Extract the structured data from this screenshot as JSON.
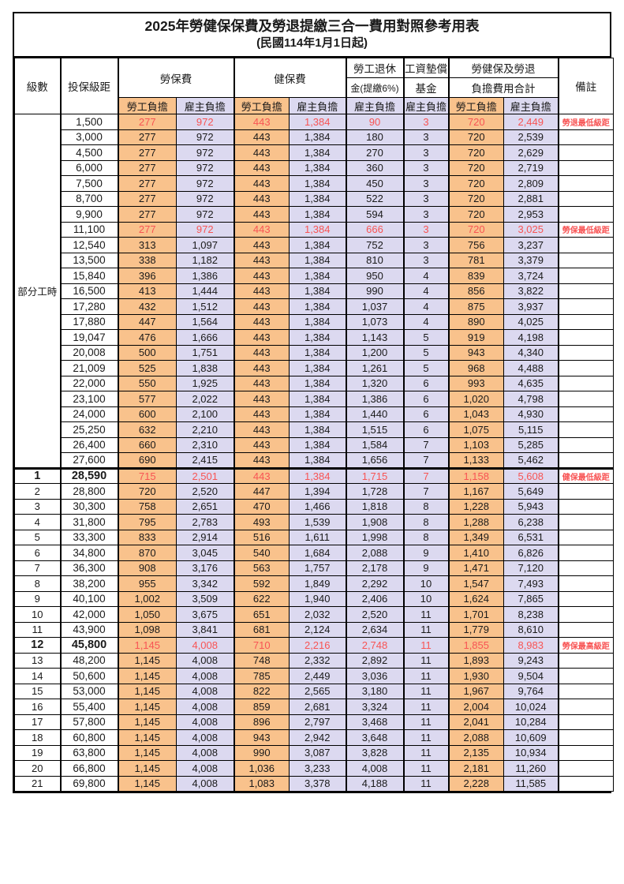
{
  "title": "2025年勞健保保費及勞退提繳三合一費用對照參考用表",
  "subtitle": "(民國114年1月1日起)",
  "colors": {
    "employee_column_bg": "#F9C28C",
    "employer_column_bg": "#DCD9F0",
    "highlight_text": "#F85454",
    "grid_line": "#000000"
  },
  "header": {
    "level": "級數",
    "bracket": "投保級距",
    "labor_ins": "勞保費",
    "health_ins": "健保費",
    "pension_l1": "勞工退休",
    "pension_l2": "金(提繳6%)",
    "fund_l1": "工資墊償",
    "fund_l2": "基金",
    "total_l1": "勞健保及勞退",
    "total_l2": "負擔費用合計",
    "remark": "備註",
    "employee": "勞工負擔",
    "employer": "雇主負擔"
  },
  "part_time_label": "部分工時",
  "part_time_span": 23,
  "rows": [
    {
      "level": "",
      "bracket": "1,500",
      "labor_emp": "277",
      "labor_er": "972",
      "health_emp": "443",
      "health_er": "1,384",
      "pension": "90",
      "fund": "3",
      "total_emp": "720",
      "total_er": "2,449",
      "remark": "勞退最低級距",
      "red": true,
      "bold": false,
      "sec": false
    },
    {
      "level": "",
      "bracket": "3,000",
      "labor_emp": "277",
      "labor_er": "972",
      "health_emp": "443",
      "health_er": "1,384",
      "pension": "180",
      "fund": "3",
      "total_emp": "720",
      "total_er": "2,539",
      "remark": "",
      "red": false,
      "bold": false,
      "sec": false
    },
    {
      "level": "",
      "bracket": "4,500",
      "labor_emp": "277",
      "labor_er": "972",
      "health_emp": "443",
      "health_er": "1,384",
      "pension": "270",
      "fund": "3",
      "total_emp": "720",
      "total_er": "2,629",
      "remark": "",
      "red": false,
      "bold": false,
      "sec": false
    },
    {
      "level": "",
      "bracket": "6,000",
      "labor_emp": "277",
      "labor_er": "972",
      "health_emp": "443",
      "health_er": "1,384",
      "pension": "360",
      "fund": "3",
      "total_emp": "720",
      "total_er": "2,719",
      "remark": "",
      "red": false,
      "bold": false,
      "sec": false
    },
    {
      "level": "",
      "bracket": "7,500",
      "labor_emp": "277",
      "labor_er": "972",
      "health_emp": "443",
      "health_er": "1,384",
      "pension": "450",
      "fund": "3",
      "total_emp": "720",
      "total_er": "2,809",
      "remark": "",
      "red": false,
      "bold": false,
      "sec": false
    },
    {
      "level": "",
      "bracket": "8,700",
      "labor_emp": "277",
      "labor_er": "972",
      "health_emp": "443",
      "health_er": "1,384",
      "pension": "522",
      "fund": "3",
      "total_emp": "720",
      "total_er": "2,881",
      "remark": "",
      "red": false,
      "bold": false,
      "sec": false
    },
    {
      "level": "",
      "bracket": "9,900",
      "labor_emp": "277",
      "labor_er": "972",
      "health_emp": "443",
      "health_er": "1,384",
      "pension": "594",
      "fund": "3",
      "total_emp": "720",
      "total_er": "2,953",
      "remark": "",
      "red": false,
      "bold": false,
      "sec": false
    },
    {
      "level": "",
      "bracket": "11,100",
      "labor_emp": "277",
      "labor_er": "972",
      "health_emp": "443",
      "health_er": "1,384",
      "pension": "666",
      "fund": "3",
      "total_emp": "720",
      "total_er": "3,025",
      "remark": "勞保最低級距",
      "red": true,
      "bold": false,
      "sec": false
    },
    {
      "level": "",
      "bracket": "12,540",
      "labor_emp": "313",
      "labor_er": "1,097",
      "health_emp": "443",
      "health_er": "1,384",
      "pension": "752",
      "fund": "3",
      "total_emp": "756",
      "total_er": "3,237",
      "remark": "",
      "red": false,
      "bold": false,
      "sec": false
    },
    {
      "level": "",
      "bracket": "13,500",
      "labor_emp": "338",
      "labor_er": "1,182",
      "health_emp": "443",
      "health_er": "1,384",
      "pension": "810",
      "fund": "3",
      "total_emp": "781",
      "total_er": "3,379",
      "remark": "",
      "red": false,
      "bold": false,
      "sec": false
    },
    {
      "level": "",
      "bracket": "15,840",
      "labor_emp": "396",
      "labor_er": "1,386",
      "health_emp": "443",
      "health_er": "1,384",
      "pension": "950",
      "fund": "4",
      "total_emp": "839",
      "total_er": "3,724",
      "remark": "",
      "red": false,
      "bold": false,
      "sec": false
    },
    {
      "level": "",
      "bracket": "16,500",
      "labor_emp": "413",
      "labor_er": "1,444",
      "health_emp": "443",
      "health_er": "1,384",
      "pension": "990",
      "fund": "4",
      "total_emp": "856",
      "total_er": "3,822",
      "remark": "",
      "red": false,
      "bold": false,
      "sec": false
    },
    {
      "level": "",
      "bracket": "17,280",
      "labor_emp": "432",
      "labor_er": "1,512",
      "health_emp": "443",
      "health_er": "1,384",
      "pension": "1,037",
      "fund": "4",
      "total_emp": "875",
      "total_er": "3,937",
      "remark": "",
      "red": false,
      "bold": false,
      "sec": false
    },
    {
      "level": "",
      "bracket": "17,880",
      "labor_emp": "447",
      "labor_er": "1,564",
      "health_emp": "443",
      "health_er": "1,384",
      "pension": "1,073",
      "fund": "4",
      "total_emp": "890",
      "total_er": "4,025",
      "remark": "",
      "red": false,
      "bold": false,
      "sec": false
    },
    {
      "level": "",
      "bracket": "19,047",
      "labor_emp": "476",
      "labor_er": "1,666",
      "health_emp": "443",
      "health_er": "1,384",
      "pension": "1,143",
      "fund": "5",
      "total_emp": "919",
      "total_er": "4,198",
      "remark": "",
      "red": false,
      "bold": false,
      "sec": false
    },
    {
      "level": "",
      "bracket": "20,008",
      "labor_emp": "500",
      "labor_er": "1,751",
      "health_emp": "443",
      "health_er": "1,384",
      "pension": "1,200",
      "fund": "5",
      "total_emp": "943",
      "total_er": "4,340",
      "remark": "",
      "red": false,
      "bold": false,
      "sec": false
    },
    {
      "level": "",
      "bracket": "21,009",
      "labor_emp": "525",
      "labor_er": "1,838",
      "health_emp": "443",
      "health_er": "1,384",
      "pension": "1,261",
      "fund": "5",
      "total_emp": "968",
      "total_er": "4,488",
      "remark": "",
      "red": false,
      "bold": false,
      "sec": false
    },
    {
      "level": "",
      "bracket": "22,000",
      "labor_emp": "550",
      "labor_er": "1,925",
      "health_emp": "443",
      "health_er": "1,384",
      "pension": "1,320",
      "fund": "6",
      "total_emp": "993",
      "total_er": "4,635",
      "remark": "",
      "red": false,
      "bold": false,
      "sec": false
    },
    {
      "level": "",
      "bracket": "23,100",
      "labor_emp": "577",
      "labor_er": "2,022",
      "health_emp": "443",
      "health_er": "1,384",
      "pension": "1,386",
      "fund": "6",
      "total_emp": "1,020",
      "total_er": "4,798",
      "remark": "",
      "red": false,
      "bold": false,
      "sec": false
    },
    {
      "level": "",
      "bracket": "24,000",
      "labor_emp": "600",
      "labor_er": "2,100",
      "health_emp": "443",
      "health_er": "1,384",
      "pension": "1,440",
      "fund": "6",
      "total_emp": "1,043",
      "total_er": "4,930",
      "remark": "",
      "red": false,
      "bold": false,
      "sec": false
    },
    {
      "level": "",
      "bracket": "25,250",
      "labor_emp": "632",
      "labor_er": "2,210",
      "health_emp": "443",
      "health_er": "1,384",
      "pension": "1,515",
      "fund": "6",
      "total_emp": "1,075",
      "total_er": "5,115",
      "remark": "",
      "red": false,
      "bold": false,
      "sec": false
    },
    {
      "level": "",
      "bracket": "26,400",
      "labor_emp": "660",
      "labor_er": "2,310",
      "health_emp": "443",
      "health_er": "1,384",
      "pension": "1,584",
      "fund": "7",
      "total_emp": "1,103",
      "total_er": "5,285",
      "remark": "",
      "red": false,
      "bold": false,
      "sec": false
    },
    {
      "level": "",
      "bracket": "27,600",
      "labor_emp": "690",
      "labor_er": "2,415",
      "health_emp": "443",
      "health_er": "1,384",
      "pension": "1,656",
      "fund": "7",
      "total_emp": "1,133",
      "total_er": "5,462",
      "remark": "",
      "red": false,
      "bold": false,
      "sec": false
    },
    {
      "level": "1",
      "bracket": "28,590",
      "labor_emp": "715",
      "labor_er": "2,501",
      "health_emp": "443",
      "health_er": "1,384",
      "pension": "1,715",
      "fund": "7",
      "total_emp": "1,158",
      "total_er": "5,608",
      "remark": "健保最低級距",
      "red": true,
      "bold": true,
      "sec": true
    },
    {
      "level": "2",
      "bracket": "28,800",
      "labor_emp": "720",
      "labor_er": "2,520",
      "health_emp": "447",
      "health_er": "1,394",
      "pension": "1,728",
      "fund": "7",
      "total_emp": "1,167",
      "total_er": "5,649",
      "remark": "",
      "red": false,
      "bold": false,
      "sec": false
    },
    {
      "level": "3",
      "bracket": "30,300",
      "labor_emp": "758",
      "labor_er": "2,651",
      "health_emp": "470",
      "health_er": "1,466",
      "pension": "1,818",
      "fund": "8",
      "total_emp": "1,228",
      "total_er": "5,943",
      "remark": "",
      "red": false,
      "bold": false,
      "sec": false
    },
    {
      "level": "4",
      "bracket": "31,800",
      "labor_emp": "795",
      "labor_er": "2,783",
      "health_emp": "493",
      "health_er": "1,539",
      "pension": "1,908",
      "fund": "8",
      "total_emp": "1,288",
      "total_er": "6,238",
      "remark": "",
      "red": false,
      "bold": false,
      "sec": false
    },
    {
      "level": "5",
      "bracket": "33,300",
      "labor_emp": "833",
      "labor_er": "2,914",
      "health_emp": "516",
      "health_er": "1,611",
      "pension": "1,998",
      "fund": "8",
      "total_emp": "1,349",
      "total_er": "6,531",
      "remark": "",
      "red": false,
      "bold": false,
      "sec": false
    },
    {
      "level": "6",
      "bracket": "34,800",
      "labor_emp": "870",
      "labor_er": "3,045",
      "health_emp": "540",
      "health_er": "1,684",
      "pension": "2,088",
      "fund": "9",
      "total_emp": "1,410",
      "total_er": "6,826",
      "remark": "",
      "red": false,
      "bold": false,
      "sec": false
    },
    {
      "level": "7",
      "bracket": "36,300",
      "labor_emp": "908",
      "labor_er": "3,176",
      "health_emp": "563",
      "health_er": "1,757",
      "pension": "2,178",
      "fund": "9",
      "total_emp": "1,471",
      "total_er": "7,120",
      "remark": "",
      "red": false,
      "bold": false,
      "sec": false
    },
    {
      "level": "8",
      "bracket": "38,200",
      "labor_emp": "955",
      "labor_er": "3,342",
      "health_emp": "592",
      "health_er": "1,849",
      "pension": "2,292",
      "fund": "10",
      "total_emp": "1,547",
      "total_er": "7,493",
      "remark": "",
      "red": false,
      "bold": false,
      "sec": false
    },
    {
      "level": "9",
      "bracket": "40,100",
      "labor_emp": "1,002",
      "labor_er": "3,509",
      "health_emp": "622",
      "health_er": "1,940",
      "pension": "2,406",
      "fund": "10",
      "total_emp": "1,624",
      "total_er": "7,865",
      "remark": "",
      "red": false,
      "bold": false,
      "sec": false
    },
    {
      "level": "10",
      "bracket": "42,000",
      "labor_emp": "1,050",
      "labor_er": "3,675",
      "health_emp": "651",
      "health_er": "2,032",
      "pension": "2,520",
      "fund": "11",
      "total_emp": "1,701",
      "total_er": "8,238",
      "remark": "",
      "red": false,
      "bold": false,
      "sec": false
    },
    {
      "level": "11",
      "bracket": "43,900",
      "labor_emp": "1,098",
      "labor_er": "3,841",
      "health_emp": "681",
      "health_er": "2,124",
      "pension": "2,634",
      "fund": "11",
      "total_emp": "1,779",
      "total_er": "8,610",
      "remark": "",
      "red": false,
      "bold": false,
      "sec": false
    },
    {
      "level": "12",
      "bracket": "45,800",
      "labor_emp": "1,145",
      "labor_er": "4,008",
      "health_emp": "710",
      "health_er": "2,216",
      "pension": "2,748",
      "fund": "11",
      "total_emp": "1,855",
      "total_er": "8,983",
      "remark": "勞保最高級距",
      "red": true,
      "bold": true,
      "sec": false
    },
    {
      "level": "13",
      "bracket": "48,200",
      "labor_emp": "1,145",
      "labor_er": "4,008",
      "health_emp": "748",
      "health_er": "2,332",
      "pension": "2,892",
      "fund": "11",
      "total_emp": "1,893",
      "total_er": "9,243",
      "remark": "",
      "red": false,
      "bold": false,
      "sec": false
    },
    {
      "level": "14",
      "bracket": "50,600",
      "labor_emp": "1,145",
      "labor_er": "4,008",
      "health_emp": "785",
      "health_er": "2,449",
      "pension": "3,036",
      "fund": "11",
      "total_emp": "1,930",
      "total_er": "9,504",
      "remark": "",
      "red": false,
      "bold": false,
      "sec": false
    },
    {
      "level": "15",
      "bracket": "53,000",
      "labor_emp": "1,145",
      "labor_er": "4,008",
      "health_emp": "822",
      "health_er": "2,565",
      "pension": "3,180",
      "fund": "11",
      "total_emp": "1,967",
      "total_er": "9,764",
      "remark": "",
      "red": false,
      "bold": false,
      "sec": false
    },
    {
      "level": "16",
      "bracket": "55,400",
      "labor_emp": "1,145",
      "labor_er": "4,008",
      "health_emp": "859",
      "health_er": "2,681",
      "pension": "3,324",
      "fund": "11",
      "total_emp": "2,004",
      "total_er": "10,024",
      "remark": "",
      "red": false,
      "bold": false,
      "sec": false
    },
    {
      "level": "17",
      "bracket": "57,800",
      "labor_emp": "1,145",
      "labor_er": "4,008",
      "health_emp": "896",
      "health_er": "2,797",
      "pension": "3,468",
      "fund": "11",
      "total_emp": "2,041",
      "total_er": "10,284",
      "remark": "",
      "red": false,
      "bold": false,
      "sec": false
    },
    {
      "level": "18",
      "bracket": "60,800",
      "labor_emp": "1,145",
      "labor_er": "4,008",
      "health_emp": "943",
      "health_er": "2,942",
      "pension": "3,648",
      "fund": "11",
      "total_emp": "2,088",
      "total_er": "10,609",
      "remark": "",
      "red": false,
      "bold": false,
      "sec": false
    },
    {
      "level": "19",
      "bracket": "63,800",
      "labor_emp": "1,145",
      "labor_er": "4,008",
      "health_emp": "990",
      "health_er": "3,087",
      "pension": "3,828",
      "fund": "11",
      "total_emp": "2,135",
      "total_er": "10,934",
      "remark": "",
      "red": false,
      "bold": false,
      "sec": false
    },
    {
      "level": "20",
      "bracket": "66,800",
      "labor_emp": "1,145",
      "labor_er": "4,008",
      "health_emp": "1,036",
      "health_er": "3,233",
      "pension": "4,008",
      "fund": "11",
      "total_emp": "2,181",
      "total_er": "11,260",
      "remark": "",
      "red": false,
      "bold": false,
      "sec": false
    },
    {
      "level": "21",
      "bracket": "69,800",
      "labor_emp": "1,145",
      "labor_er": "4,008",
      "health_emp": "1,083",
      "health_er": "3,378",
      "pension": "4,188",
      "fund": "11",
      "total_emp": "2,228",
      "total_er": "11,585",
      "remark": "",
      "red": false,
      "bold": false,
      "sec": false
    }
  ]
}
